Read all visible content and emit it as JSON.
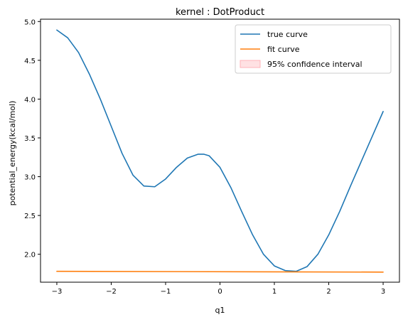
{
  "chart_data": {
    "type": "line",
    "title": "kernel : DotProduct",
    "xlabel": "q1",
    "ylabel": "potential_energy(kcal/mol)",
    "xlim": [
      -3.3,
      3.3
    ],
    "ylim": [
      1.64,
      5.03
    ],
    "xticks": [
      -3,
      -2,
      -1,
      0,
      1,
      2,
      3
    ],
    "xtick_labels": [
      "−3",
      "−2",
      "−1",
      "0",
      "1",
      "2",
      "3"
    ],
    "yticks": [
      2.0,
      2.5,
      3.0,
      3.5,
      4.0,
      4.5,
      5.0
    ],
    "ytick_labels": [
      "2.0",
      "2.5",
      "3.0",
      "3.5",
      "4.0",
      "4.5",
      "5.0"
    ],
    "legend_position": "top-right",
    "grid": false,
    "series": [
      {
        "name": "true curve",
        "color": "#1f77b4",
        "x": [
          -3.0,
          -2.8,
          -2.6,
          -2.4,
          -2.2,
          -2.0,
          -1.8,
          -1.6,
          -1.4,
          -1.2,
          -1.0,
          -0.8,
          -0.6,
          -0.4,
          -0.3,
          -0.2,
          0.0,
          0.2,
          0.4,
          0.6,
          0.8,
          1.0,
          1.2,
          1.4,
          1.6,
          1.8,
          2.0,
          2.2,
          2.4,
          2.6,
          2.8,
          3.0
        ],
        "y": [
          4.89,
          4.79,
          4.6,
          4.32,
          4.0,
          3.65,
          3.3,
          3.02,
          2.88,
          2.87,
          2.97,
          3.12,
          3.24,
          3.29,
          3.29,
          3.27,
          3.12,
          2.86,
          2.55,
          2.25,
          2.0,
          1.85,
          1.79,
          1.78,
          1.84,
          2.0,
          2.25,
          2.55,
          2.88,
          3.2,
          3.52,
          3.84
        ]
      },
      {
        "name": "fit curve",
        "color": "#ff7f0e",
        "x": [
          -3.0,
          3.0
        ],
        "y": [
          1.78,
          1.77
        ]
      }
    ],
    "legend": [
      {
        "label": "true curve",
        "kind": "line",
        "color": "#1f77b4"
      },
      {
        "label": "fit curve",
        "kind": "line",
        "color": "#ff7f0e"
      },
      {
        "label": "95% confidence interval",
        "kind": "patch",
        "color": "#ffb3b8"
      }
    ]
  }
}
